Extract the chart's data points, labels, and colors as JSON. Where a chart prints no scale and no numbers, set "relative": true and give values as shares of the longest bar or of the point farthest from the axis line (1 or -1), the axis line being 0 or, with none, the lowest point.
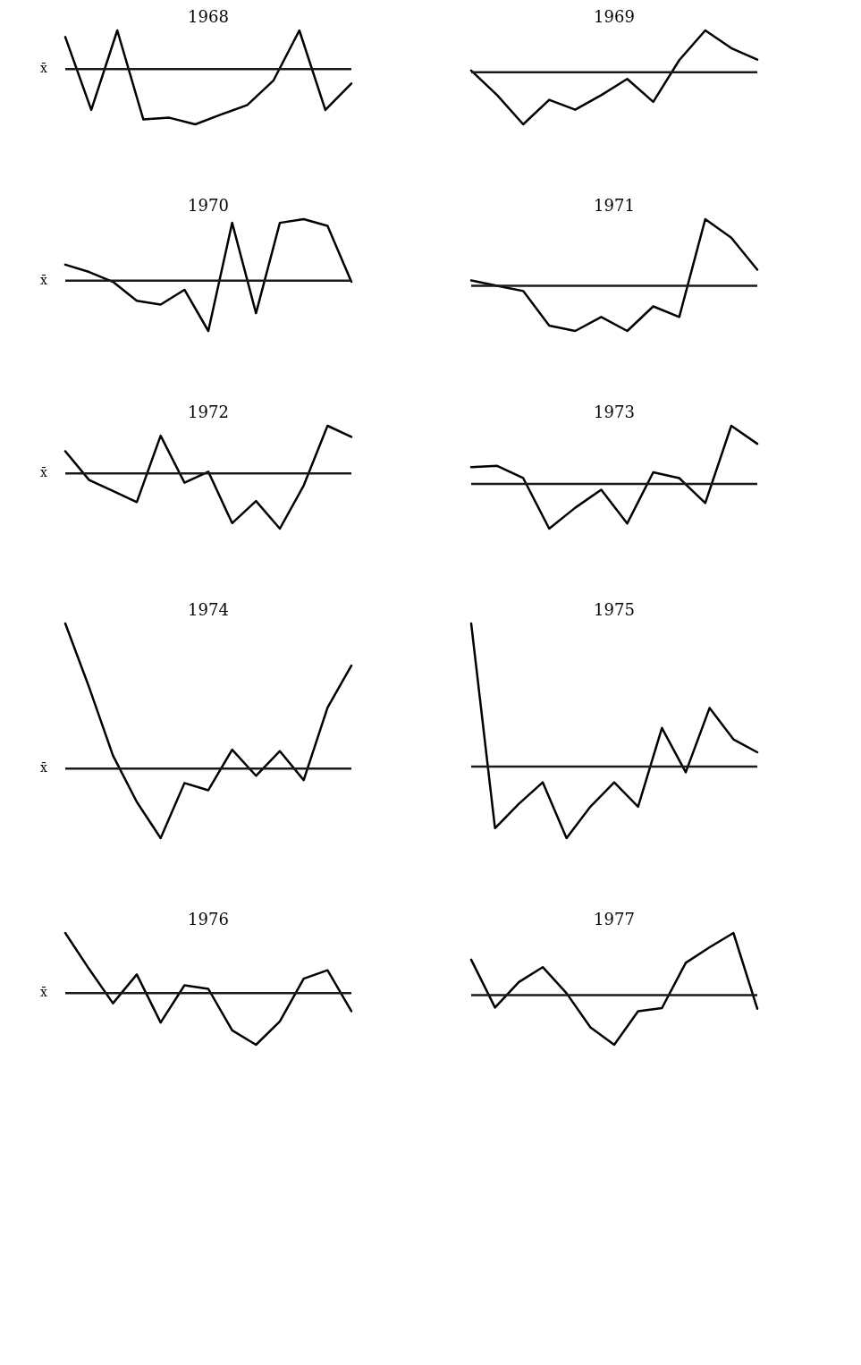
{
  "chart_data": [
    {
      "type": "line",
      "title": "1968",
      "relative": true,
      "categories": [
        null,
        null,
        null,
        null,
        null,
        null,
        null,
        null,
        null,
        null,
        null,
        null
      ],
      "series": [
        {
          "color": "#000000",
          "values": [
            0.58,
            -0.74,
            0.7,
            -0.91,
            -0.88,
            -1,
            -0.82,
            -0.65,
            -0.21,
            0.7,
            -0.74,
            -0.26
          ]
        }
      ],
      "ref_lines": [
        {
          "axis": "y",
          "value": 0,
          "label": "x̄",
          "color": "#1a1a1a"
        }
      ]
    },
    {
      "type": "line",
      "title": "1969",
      "relative": true,
      "categories": [
        null,
        null,
        null,
        null,
        null,
        null,
        null,
        null,
        null,
        null,
        null,
        null
      ],
      "series": [
        {
          "color": "#000000",
          "values": [
            0.03,
            -0.44,
            -1,
            -0.53,
            -0.72,
            -0.44,
            -0.13,
            -0.57,
            0.23,
            0.8,
            0.46,
            0.24
          ]
        }
      ],
      "ref_lines": [
        {
          "axis": "y",
          "value": 0,
          "color": "#1a1a1a"
        }
      ]
    },
    {
      "type": "line",
      "title": "1970",
      "relative": true,
      "categories": [
        null,
        null,
        null,
        null,
        null,
        null,
        null,
        null,
        null,
        null,
        null,
        null,
        null
      ],
      "series": [
        {
          "color": "#000000",
          "values": [
            0.26,
            0.14,
            -0.02,
            -0.33,
            -0.39,
            -0.15,
            -0.82,
            0.94,
            -0.53,
            0.94,
            1,
            0.89,
            -0.02
          ]
        }
      ],
      "ref_lines": [
        {
          "axis": "y",
          "value": 0,
          "label": "x̄",
          "color": "#1a1a1a"
        }
      ]
    },
    {
      "type": "line",
      "title": "1971",
      "relative": true,
      "categories": [
        null,
        null,
        null,
        null,
        null,
        null,
        null,
        null,
        null,
        null,
        null,
        null
      ],
      "series": [
        {
          "color": "#000000",
          "values": [
            0.08,
            0,
            -0.08,
            -0.6,
            -0.68,
            -0.47,
            -0.68,
            -0.31,
            -0.47,
            1,
            0.72,
            0.24
          ]
        }
      ],
      "ref_lines": [
        {
          "axis": "y",
          "value": 0,
          "color": "#1a1a1a"
        }
      ]
    },
    {
      "type": "line",
      "title": "1972",
      "relative": true,
      "categories": [
        null,
        null,
        null,
        null,
        null,
        null,
        null,
        null,
        null,
        null,
        null,
        null,
        null
      ],
      "series": [
        {
          "color": "#000000",
          "values": [
            0.4,
            -0.12,
            -0.32,
            -0.52,
            0.68,
            -0.17,
            0.03,
            -0.9,
            -0.5,
            -1,
            -0.22,
            0.86,
            0.66
          ]
        }
      ],
      "ref_lines": [
        {
          "axis": "y",
          "value": 0,
          "label": "x̄",
          "color": "#1a1a1a"
        }
      ]
    },
    {
      "type": "line",
      "title": "1973",
      "relative": true,
      "categories": [
        null,
        null,
        null,
        null,
        null,
        null,
        null,
        null,
        null,
        null,
        null,
        null
      ],
      "series": [
        {
          "color": "#000000",
          "values": [
            0.29,
            0.31,
            0.1,
            -0.77,
            -0.41,
            -0.1,
            -0.68,
            0.2,
            0.1,
            -0.33,
            1,
            0.69
          ]
        }
      ],
      "ref_lines": [
        {
          "axis": "y",
          "value": 0,
          "color": "#1a1a1a"
        }
      ]
    },
    {
      "type": "line",
      "title": "1974",
      "relative": true,
      "categories": [
        null,
        null,
        null,
        null,
        null,
        null,
        null,
        null,
        null,
        null,
        null,
        null,
        null
      ],
      "series": [
        {
          "color": "#000000",
          "values": [
            1,
            0.56,
            0.09,
            -0.23,
            -0.48,
            -0.1,
            -0.15,
            0.13,
            -0.05,
            0.12,
            -0.08,
            0.42,
            0.71
          ]
        }
      ],
      "ref_lines": [
        {
          "axis": "y",
          "value": 0,
          "label": "x̄",
          "color": "#1a1a1a"
        }
      ]
    },
    {
      "type": "line",
      "title": "1975",
      "relative": true,
      "categories": [
        null,
        null,
        null,
        null,
        null,
        null,
        null,
        null,
        null,
        null,
        null,
        null,
        null
      ],
      "series": [
        {
          "color": "#000000",
          "values": [
            1,
            -0.43,
            -0.26,
            -0.11,
            -0.5,
            -0.28,
            -0.11,
            -0.28,
            0.27,
            -0.04,
            0.41,
            0.19,
            0.1
          ]
        }
      ],
      "ref_lines": [
        {
          "axis": "y",
          "value": 0,
          "color": "#1a1a1a"
        }
      ]
    },
    {
      "type": "line",
      "title": "1976",
      "relative": true,
      "categories": [
        null,
        null,
        null,
        null,
        null,
        null,
        null,
        null,
        null,
        null,
        null,
        null,
        null
      ],
      "series": [
        {
          "color": "#000000",
          "values": [
            1,
            0.4,
            -0.17,
            0.31,
            -0.49,
            0.13,
            0.07,
            -0.62,
            -0.86,
            -0.47,
            0.24,
            0.38,
            -0.3
          ]
        }
      ],
      "ref_lines": [
        {
          "axis": "y",
          "value": 0,
          "label": "x̄",
          "color": "#1a1a1a"
        }
      ]
    },
    {
      "type": "line",
      "title": "1977",
      "relative": true,
      "categories": [
        null,
        null,
        null,
        null,
        null,
        null,
        null,
        null,
        null,
        null,
        null,
        null,
        null
      ],
      "series": [
        {
          "color": "#000000",
          "values": [
            0.57,
            -0.2,
            0.21,
            0.45,
            0.03,
            -0.52,
            -0.8,
            -0.26,
            -0.21,
            0.52,
            0.77,
            1,
            -0.22
          ]
        }
      ],
      "ref_lines": [
        {
          "axis": "y",
          "value": 0,
          "color": "#1a1a1a"
        }
      ]
    }
  ]
}
